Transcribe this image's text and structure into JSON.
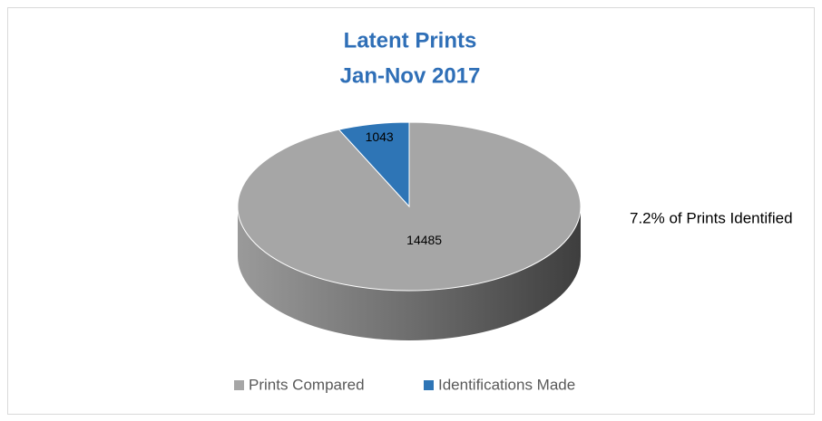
{
  "chart_data": {
    "type": "pie",
    "title": "Latent Prints",
    "subtitle": "Jan-Nov 2017",
    "categories": [
      "Prints Compared",
      "Identifications Made"
    ],
    "values": [
      14485,
      1043
    ],
    "colors": [
      "#a6a6a6",
      "#2e75b6"
    ],
    "annotation": "7.2% of Prints Identified",
    "legend": "bottom"
  }
}
